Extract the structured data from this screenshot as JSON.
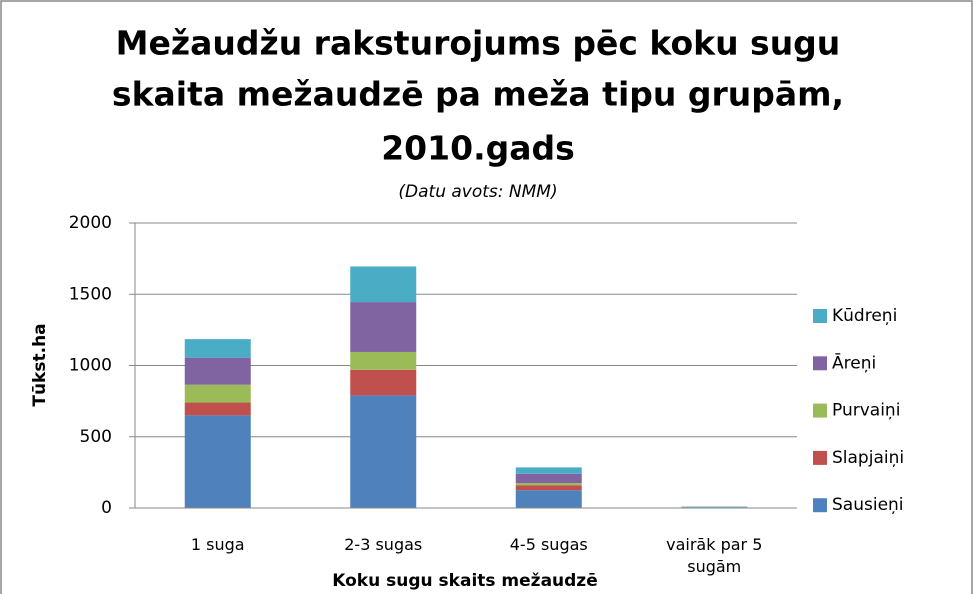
{
  "chart_data": {
    "type": "stacked_bar",
    "title": [
      "Mežaudžu raksturojums pēc koku sugu",
      "skaita mežaudzē pa meža tipu grupām,",
      "2010.gads"
    ],
    "subtitle": "(Datu avots: NMM)",
    "y_label": "Tūkst.ha",
    "x_label": "Koku sugu skaits mežaudzē",
    "categories": [
      "1 suga",
      "2-3 sugas",
      "4-5 sugas",
      "vairāk par 5 sugām"
    ],
    "series": [
      {
        "name": "Sausieņi",
        "color": "#4f81bd",
        "values": [
          650,
          790,
          125,
          2
        ]
      },
      {
        "name": "Slapjaiņi",
        "color": "#c0504d",
        "values": [
          90,
          180,
          35,
          1
        ]
      },
      {
        "name": "Purvaiņi",
        "color": "#9bbb59",
        "values": [
          125,
          125,
          15,
          1
        ]
      },
      {
        "name": "Āreņi",
        "color": "#8064a2",
        "values": [
          190,
          350,
          65,
          2
        ]
      },
      {
        "name": "Kūdreņi",
        "color": "#4bacc6",
        "values": [
          130,
          250,
          45,
          4
        ]
      }
    ],
    "ylim": [
      0,
      2000
    ],
    "yticks": [
      0,
      500,
      1000,
      1500,
      2000
    ],
    "grid": true,
    "legend": "right"
  }
}
